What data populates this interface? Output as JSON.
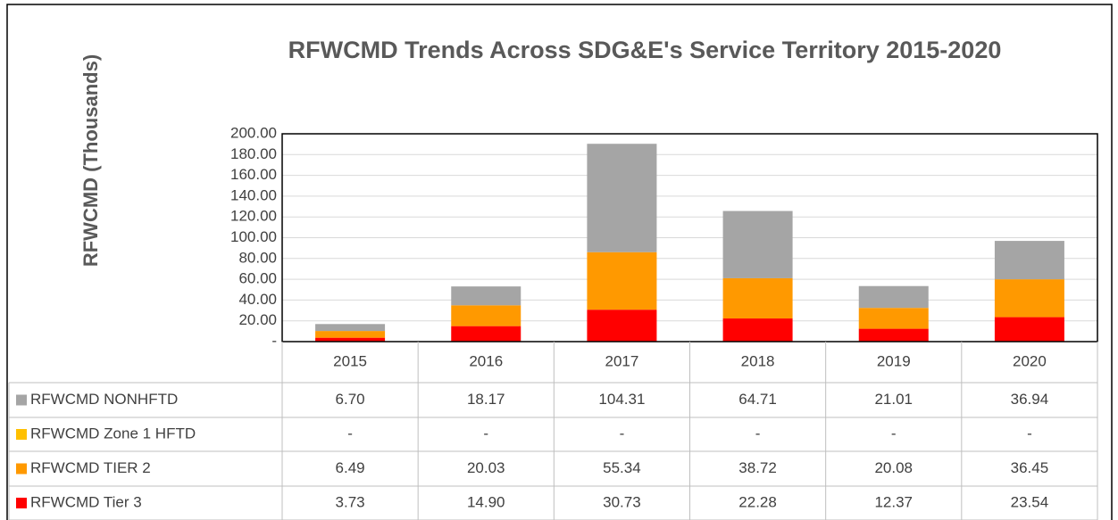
{
  "chart_data": {
    "type": "stacked_bar",
    "title": "RFWCMD Trends Across SDG&E's Service Territory 2015-2020",
    "y_label": "RFWCMD (Thousands)",
    "categories": [
      "2015",
      "2016",
      "2017",
      "2018",
      "2019",
      "2020"
    ],
    "series": [
      {
        "name": "RFWCMD NONHFTD",
        "color": "#a5a5a5",
        "values": [
          6.7,
          18.17,
          104.31,
          64.71,
          21.01,
          36.94
        ],
        "value_labels": [
          "6.70",
          "18.17",
          "104.31",
          "64.71",
          "21.01",
          "36.94"
        ]
      },
      {
        "name": "RFWCMD Zone 1 HFTD",
        "color": "#ffc000",
        "values": [
          0,
          0,
          0,
          0,
          0,
          0
        ],
        "value_labels": [
          "-",
          "-",
          "-",
          "-",
          "-",
          "-"
        ]
      },
      {
        "name": "RFWCMD TIER 2",
        "color": "#ff9900",
        "values": [
          6.49,
          20.03,
          55.34,
          38.72,
          20.08,
          36.45
        ],
        "value_labels": [
          "6.49",
          "20.03",
          "55.34",
          "38.72",
          "20.08",
          "36.45"
        ]
      },
      {
        "name": "RFWCMD Tier 3",
        "color": "#ff0000",
        "values": [
          3.73,
          14.9,
          30.73,
          22.28,
          12.37,
          23.54
        ],
        "value_labels": [
          "3.73",
          "14.90",
          "30.73",
          "22.28",
          "12.37",
          "23.54"
        ]
      }
    ],
    "ylim": [
      0,
      200
    ],
    "yticks": [
      {
        "value": 0,
        "label": "-"
      },
      {
        "value": 20,
        "label": "20.00"
      },
      {
        "value": 40,
        "label": "40.00"
      },
      {
        "value": 60,
        "label": "60.00"
      },
      {
        "value": 80,
        "label": "80.00"
      },
      {
        "value": 100,
        "label": "100.00"
      },
      {
        "value": 120,
        "label": "120.00"
      },
      {
        "value": 140,
        "label": "140.00"
      },
      {
        "value": 160,
        "label": "160.00"
      },
      {
        "value": 180,
        "label": "180.00"
      },
      {
        "value": 200,
        "label": "200.00"
      }
    ],
    "grid": true
  }
}
